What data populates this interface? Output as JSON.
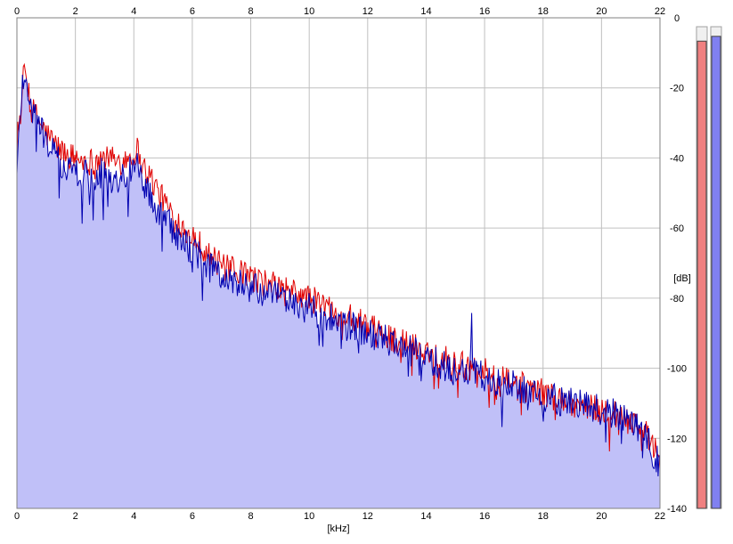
{
  "chart_data": {
    "type": "area",
    "xlabel": "[kHz]",
    "ylabel": "[dB]",
    "xlim": [
      0,
      22
    ],
    "ylim": [
      -140,
      0
    ],
    "x_ticks": [
      "0",
      "2",
      "4",
      "6",
      "8",
      "10",
      "12",
      "14",
      "16",
      "18",
      "20",
      "22"
    ],
    "y_ticks": [
      "0",
      "-20",
      "-40",
      "-60",
      "-80",
      "-100",
      "-120",
      "-140"
    ],
    "grid": true,
    "colors": {
      "left_line": "#e00000",
      "right_line": "#0000b0",
      "fill": "#c0c0f8",
      "meter_left": "#f08080",
      "meter_right": "#8080f0",
      "grid": "#c0c0c0"
    },
    "series": [
      {
        "channel": "left",
        "x": [
          0,
          0.1,
          0.2,
          0.3,
          0.5,
          0.8,
          1.0,
          1.5,
          2.0,
          2.5,
          3.0,
          3.5,
          4.0,
          4.1,
          4.3,
          4.6,
          5.0,
          5.5,
          6.0,
          6.5,
          7.0,
          8.0,
          9.0,
          10.0,
          11.0,
          12.0,
          13.0,
          14.0,
          15.0,
          15.5,
          16.0,
          16.5,
          17.0,
          18.0,
          19.0,
          20.0,
          21.0,
          21.5,
          22.0
        ],
        "values": [
          -32,
          -28,
          -18,
          -16,
          -26,
          -30,
          -33,
          -38,
          -40,
          -41,
          -40,
          -41,
          -39,
          -37,
          -42,
          -46,
          -52,
          -58,
          -62,
          -67,
          -71,
          -74,
          -77,
          -80,
          -84,
          -88,
          -92,
          -95,
          -98,
          -100,
          -101,
          -103,
          -104,
          -107,
          -110,
          -112,
          -114,
          -118,
          -126
        ]
      },
      {
        "channel": "right",
        "x": [
          0,
          0.1,
          0.2,
          0.3,
          0.5,
          0.8,
          1.0,
          1.5,
          2.0,
          2.5,
          3.0,
          3.5,
          4.0,
          4.1,
          4.3,
          4.6,
          5.0,
          5.5,
          6.0,
          6.5,
          7.0,
          8.0,
          9.0,
          10.0,
          11.0,
          12.0,
          13.0,
          14.0,
          15.0,
          15.5,
          15.55,
          15.6,
          16.0,
          16.5,
          17.0,
          18.0,
          19.0,
          20.0,
          21.0,
          21.5,
          22.0
        ],
        "values": [
          -45,
          -28,
          -17,
          -16,
          -27,
          -31,
          -35,
          -42,
          -44,
          -45,
          -44,
          -46,
          -43,
          -41,
          -46,
          -52,
          -57,
          -62,
          -66,
          -70,
          -74,
          -77,
          -80,
          -83,
          -87,
          -90,
          -93,
          -97,
          -101,
          -101,
          -80,
          -100,
          -103,
          -104,
          -105,
          -108,
          -110,
          -112,
          -114,
          -119,
          -128
        ]
      }
    ],
    "meters": {
      "left": 0.97,
      "right": 0.98
    }
  }
}
